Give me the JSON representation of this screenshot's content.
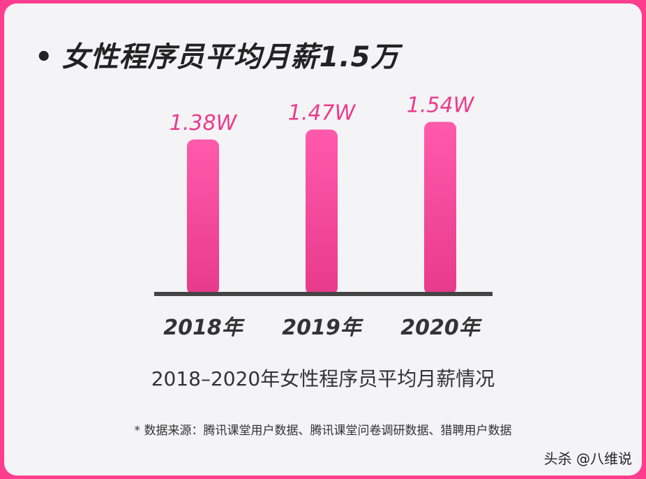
{
  "headline": {
    "bullet": "•",
    "text": "女性程序员平均月薪1.5万"
  },
  "chart_data": {
    "type": "bar",
    "categories": [
      "2018年",
      "2019年",
      "2020年"
    ],
    "values": [
      1.38,
      1.47,
      1.54
    ],
    "data_labels": [
      "1.38W",
      "1.47W",
      "1.54W"
    ],
    "title": "2018–2020年女性程序员平均月薪情况",
    "xlabel": "",
    "ylabel": "",
    "ylim": [
      0,
      1.6
    ],
    "grid": false,
    "bar_color": "#ff4fa0",
    "label_color": "#ec3a8c",
    "axis_color": "#444444"
  },
  "source_note": "* 数据来源：腾讯课堂用户数据、腾讯课堂问卷调研数据、猎聘用户数据",
  "watermark": "头杀 @八维说",
  "colors": {
    "frame": "#ff3d8f",
    "card": "#f4f3f5"
  }
}
